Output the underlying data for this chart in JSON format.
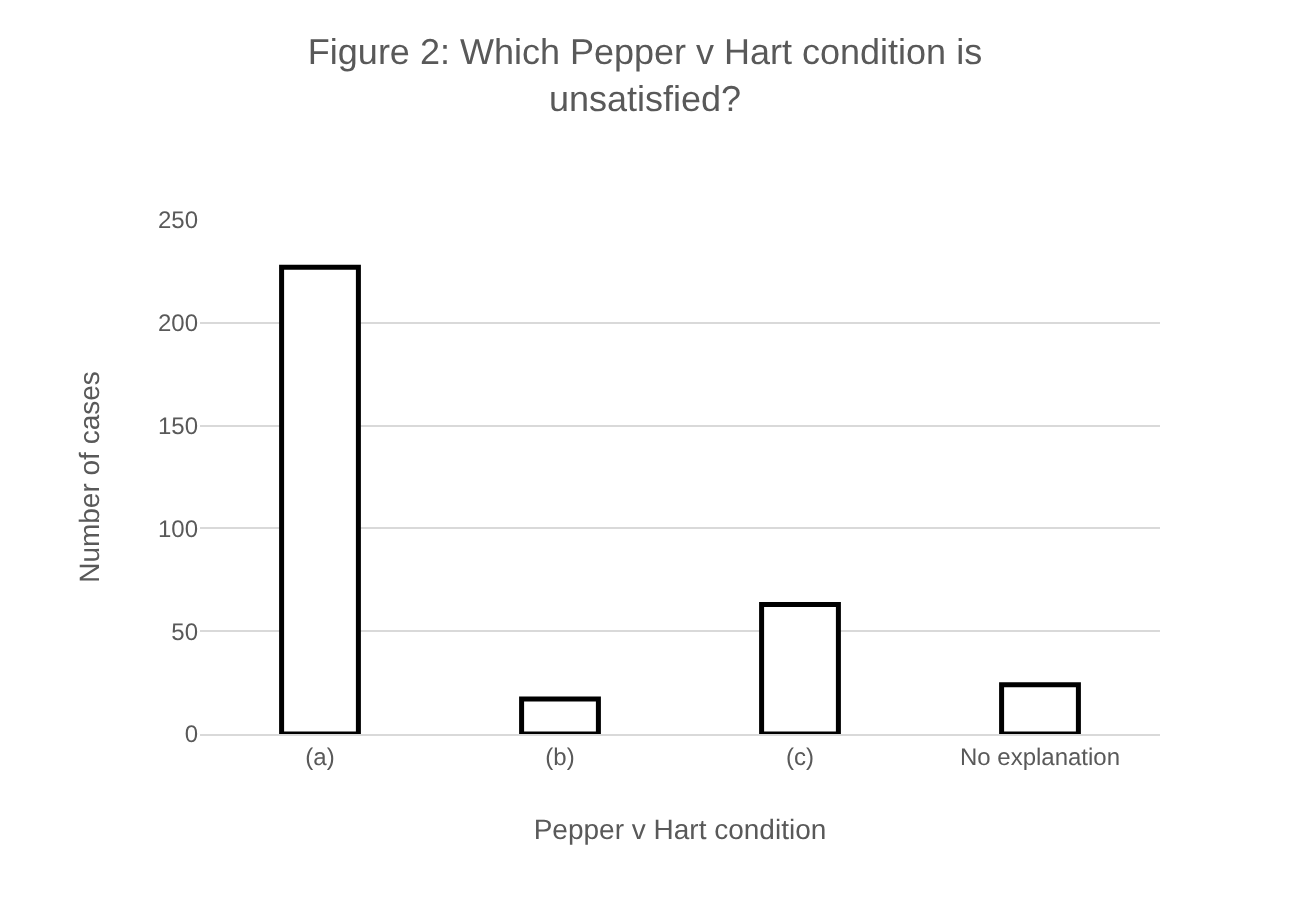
{
  "chart_data": {
    "type": "bar",
    "title": "Figure 2: Which Pepper v Hart condition is unsatisfied?",
    "xlabel": "Pepper v Hart condition",
    "ylabel": "Number of cases",
    "categories": [
      "(a)",
      "(b)",
      "(c)",
      "No explanation"
    ],
    "values": [
      227,
      17,
      63,
      24
    ],
    "color": "#ffffff",
    "ylim": [
      0,
      250
    ],
    "yticks": [
      0,
      50,
      100,
      150,
      200,
      250
    ],
    "grid": "y"
  }
}
